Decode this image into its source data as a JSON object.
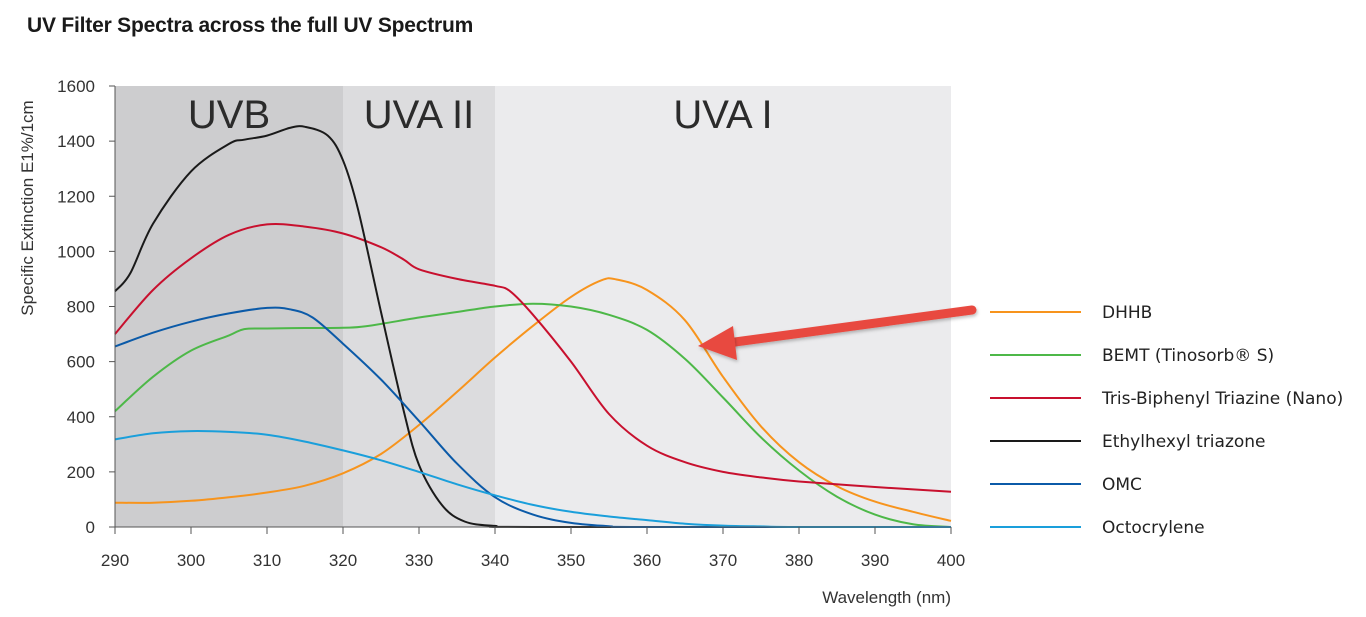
{
  "chart_data": {
    "type": "line",
    "title": "UV Filter Spectra across the full UV Spectrum",
    "xlabel": "Wavelength (nm)",
    "ylabel": "Specific Extinction E1%/1cm",
    "xlim": [
      290,
      400
    ],
    "ylim": [
      0,
      1600
    ],
    "xticks": [
      290,
      300,
      310,
      320,
      330,
      340,
      350,
      360,
      370,
      380,
      390,
      400
    ],
    "yticks": [
      0,
      200,
      400,
      600,
      800,
      1000,
      1200,
      1400,
      1600
    ],
    "grid": false,
    "legend_position": "right",
    "regions": [
      {
        "label": "UVB",
        "x0": 290,
        "x1": 320,
        "color": "#cdcdcf"
      },
      {
        "label": "UVA II",
        "x0": 320,
        "x1": 340,
        "color": "#dcdcde"
      },
      {
        "label": "UVA I",
        "x0": 340,
        "x1": 400,
        "color": "#ebebed"
      }
    ],
    "series": [
      {
        "name": "DHHB",
        "color": "#f7941d",
        "points": [
          [
            290,
            88
          ],
          [
            295,
            88
          ],
          [
            300,
            95
          ],
          [
            305,
            108
          ],
          [
            310,
            125
          ],
          [
            315,
            150
          ],
          [
            320,
            195
          ],
          [
            325,
            265
          ],
          [
            330,
            370
          ],
          [
            335,
            490
          ],
          [
            340,
            615
          ],
          [
            345,
            730
          ],
          [
            350,
            835
          ],
          [
            354,
            895
          ],
          [
            356,
            898
          ],
          [
            360,
            860
          ],
          [
            365,
            750
          ],
          [
            370,
            545
          ],
          [
            375,
            365
          ],
          [
            380,
            235
          ],
          [
            385,
            148
          ],
          [
            390,
            92
          ],
          [
            395,
            55
          ],
          [
            400,
            22
          ]
        ]
      },
      {
        "name": "BEMT (Tinosorb® S)",
        "color": "#4db848",
        "points": [
          [
            290,
            420
          ],
          [
            295,
            545
          ],
          [
            300,
            640
          ],
          [
            305,
            695
          ],
          [
            307,
            718
          ],
          [
            310,
            720
          ],
          [
            315,
            722
          ],
          [
            320,
            723
          ],
          [
            323,
            728
          ],
          [
            330,
            760
          ],
          [
            335,
            780
          ],
          [
            340,
            800
          ],
          [
            345,
            810
          ],
          [
            350,
            800
          ],
          [
            355,
            770
          ],
          [
            360,
            715
          ],
          [
            365,
            610
          ],
          [
            370,
            470
          ],
          [
            375,
            325
          ],
          [
            380,
            205
          ],
          [
            385,
            110
          ],
          [
            390,
            45
          ],
          [
            395,
            10
          ],
          [
            400,
            0
          ]
        ]
      },
      {
        "name": "Tris-Biphenyl Triazine (Nano)",
        "color": "#c8102e",
        "points": [
          [
            290,
            700
          ],
          [
            295,
            860
          ],
          [
            300,
            975
          ],
          [
            305,
            1060
          ],
          [
            310,
            1098
          ],
          [
            315,
            1090
          ],
          [
            320,
            1065
          ],
          [
            325,
            1015
          ],
          [
            328,
            970
          ],
          [
            330,
            935
          ],
          [
            335,
            900
          ],
          [
            340,
            875
          ],
          [
            342,
            855
          ],
          [
            345,
            770
          ],
          [
            350,
            600
          ],
          [
            355,
            410
          ],
          [
            360,
            295
          ],
          [
            365,
            235
          ],
          [
            370,
            200
          ],
          [
            375,
            180
          ],
          [
            380,
            165
          ],
          [
            390,
            145
          ],
          [
            400,
            128
          ]
        ]
      },
      {
        "name": "Ethylhexyl triazone",
        "color": "#1a1a1a",
        "points": [
          [
            290,
            855
          ],
          [
            292,
            920
          ],
          [
            295,
            1100
          ],
          [
            300,
            1290
          ],
          [
            305,
            1390
          ],
          [
            307,
            1405
          ],
          [
            310,
            1420
          ],
          [
            313,
            1448
          ],
          [
            315,
            1452
          ],
          [
            318,
            1420
          ],
          [
            320,
            1330
          ],
          [
            322,
            1150
          ],
          [
            325,
            780
          ],
          [
            328,
            420
          ],
          [
            330,
            225
          ],
          [
            333,
            80
          ],
          [
            336,
            20
          ],
          [
            340,
            4
          ],
          [
            345,
            0
          ],
          [
            400,
            0
          ]
        ]
      },
      {
        "name": "OMC",
        "color": "#0b5aa8",
        "points": [
          [
            290,
            655
          ],
          [
            295,
            705
          ],
          [
            300,
            745
          ],
          [
            305,
            775
          ],
          [
            310,
            795
          ],
          [
            313,
            790
          ],
          [
            316,
            760
          ],
          [
            320,
            665
          ],
          [
            325,
            535
          ],
          [
            330,
            385
          ],
          [
            335,
            230
          ],
          [
            340,
            108
          ],
          [
            345,
            45
          ],
          [
            350,
            15
          ],
          [
            355,
            3
          ],
          [
            360,
            0
          ],
          [
            400,
            0
          ]
        ]
      },
      {
        "name": "Octocrylene",
        "color": "#1a9fdb",
        "points": [
          [
            290,
            318
          ],
          [
            295,
            340
          ],
          [
            300,
            348
          ],
          [
            305,
            345
          ],
          [
            310,
            335
          ],
          [
            315,
            310
          ],
          [
            320,
            278
          ],
          [
            325,
            242
          ],
          [
            330,
            200
          ],
          [
            335,
            155
          ],
          [
            340,
            115
          ],
          [
            345,
            80
          ],
          [
            350,
            55
          ],
          [
            355,
            38
          ],
          [
            360,
            25
          ],
          [
            365,
            12
          ],
          [
            370,
            5
          ],
          [
            375,
            2
          ],
          [
            380,
            0
          ],
          [
            400,
            0
          ]
        ]
      }
    ]
  }
}
